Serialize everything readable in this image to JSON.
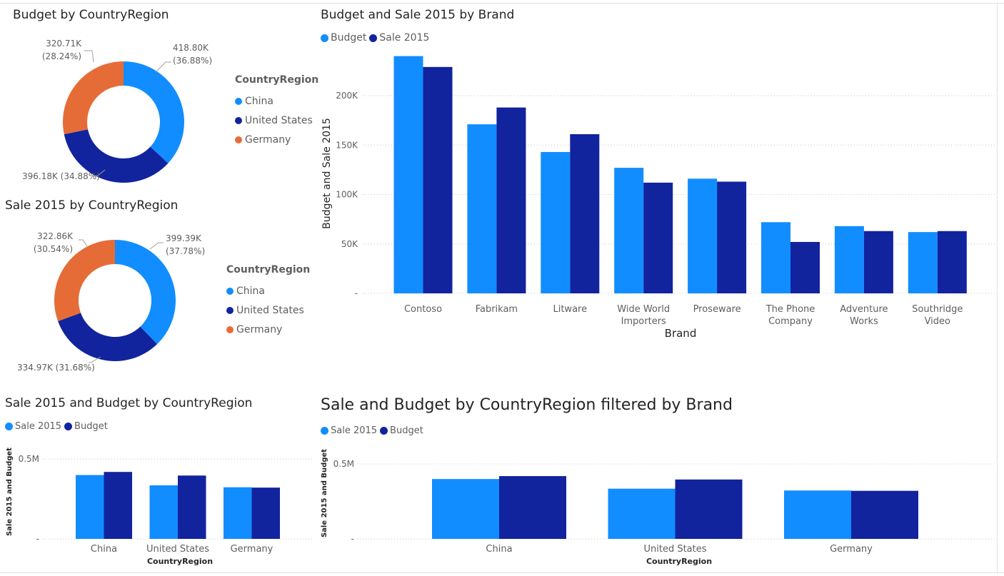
{
  "colors": {
    "china": "#118DFF",
    "united_states": "#12239E",
    "germany": "#E66C37",
    "budget": "#118DFF",
    "sale2015": "#12239E",
    "grid": "#c8c6c4",
    "axis_text": "#605e5c"
  },
  "donut_budget": {
    "title": "Budget by CountryRegion",
    "legend_title": "CountryRegion",
    "legend": [
      "China",
      "United States",
      "Germany"
    ],
    "labels": {
      "china": "418.80K\n(36.88%)",
      "us": "396.18K (34.88%)",
      "germany": "320.71K\n(28.24%)"
    }
  },
  "donut_sale": {
    "title": "Sale 2015 by CountryRegion",
    "legend_title": "CountryRegion",
    "legend": [
      "China",
      "United States",
      "Germany"
    ],
    "labels": {
      "china": "399.39K\n(37.78%)",
      "us": "334.97K (31.68%)",
      "germany": "322.86K\n(30.54%)"
    }
  },
  "brand_chart": {
    "title": "Budget and Sale 2015 by Brand",
    "legend": [
      "Budget",
      "Sale 2015"
    ],
    "xlabel": "Brand",
    "ylabel": "Budget and Sale 2015"
  },
  "country_small": {
    "title": "Sale 2015 and Budget by CountryRegion",
    "legend": [
      "Sale 2015",
      "Budget"
    ],
    "xlabel": "CountryRegion",
    "ylabel": "Sale 2015 and Budget"
  },
  "country_big": {
    "title": "Sale and Budget by CountryRegion filtered by Brand",
    "legend": [
      "Sale 2015",
      "Budget"
    ],
    "xlabel": "CountryRegion",
    "ylabel": "Sale 2015 and Budget"
  },
  "chart_data": [
    {
      "type": "pie",
      "title": "Budget by CountryRegion",
      "categories": [
        "China",
        "United States",
        "Germany"
      ],
      "values": [
        418800,
        396180,
        320710
      ],
      "percents": [
        36.88,
        34.88,
        28.24
      ],
      "data_labels": [
        "418.80K (36.88%)",
        "396.18K (34.88%)",
        "320.71K (28.24%)"
      ],
      "legend_title": "CountryRegion",
      "legend_position": "right"
    },
    {
      "type": "pie",
      "title": "Sale 2015 by CountryRegion",
      "categories": [
        "China",
        "United States",
        "Germany"
      ],
      "values": [
        399390,
        334970,
        322860
      ],
      "percents": [
        37.78,
        31.68,
        30.54
      ],
      "data_labels": [
        "399.39K (37.78%)",
        "334.97K (31.68%)",
        "322.86K (30.54%)"
      ],
      "legend_title": "CountryRegion",
      "legend_position": "right"
    },
    {
      "type": "bar",
      "title": "Budget and Sale 2015 by Brand",
      "categories": [
        "Contoso",
        "Fabrikam",
        "Litware",
        "Wide World Importers",
        "Proseware",
        "The Phone Company",
        "Adventure Works",
        "Southridge Video"
      ],
      "series": [
        {
          "name": "Budget",
          "values": [
            240000,
            171000,
            143000,
            127000,
            116000,
            72000,
            68000,
            62000
          ]
        },
        {
          "name": "Sale 2015",
          "values": [
            229000,
            188000,
            161000,
            112000,
            113000,
            52000,
            63000,
            63000
          ]
        }
      ],
      "xlabel": "Brand",
      "ylabel": "Budget and Sale 2015",
      "ylim": [
        0,
        250000
      ],
      "yticks": [
        "",
        "50K",
        "100K",
        "150K",
        "200K"
      ],
      "grid": true,
      "legend_position": "top-left"
    },
    {
      "type": "bar",
      "title": "Sale 2015 and Budget by CountryRegion",
      "categories": [
        "China",
        "United States",
        "Germany"
      ],
      "series": [
        {
          "name": "Sale 2015",
          "values": [
            399390,
            334970,
            322860
          ]
        },
        {
          "name": "Budget",
          "values": [
            418800,
            396180,
            320710
          ]
        }
      ],
      "xlabel": "CountryRegion",
      "ylabel": "Sale 2015 and Budget",
      "ylim": [
        0,
        500000
      ],
      "yticks": [
        "",
        "0.5M"
      ],
      "grid": true,
      "legend_position": "top-left"
    },
    {
      "type": "bar",
      "title": "Sale and Budget by CountryRegion filtered by Brand",
      "categories": [
        "China",
        "United States",
        "Germany"
      ],
      "series": [
        {
          "name": "Sale 2015",
          "values": [
            399390,
            334970,
            322860
          ]
        },
        {
          "name": "Budget",
          "values": [
            418800,
            396180,
            320710
          ]
        }
      ],
      "xlabel": "CountryRegion",
      "ylabel": "Sale 2015 and Budget",
      "ylim": [
        0,
        500000
      ],
      "yticks": [
        "",
        "0.5M"
      ],
      "grid": true,
      "legend_position": "top-left"
    }
  ]
}
